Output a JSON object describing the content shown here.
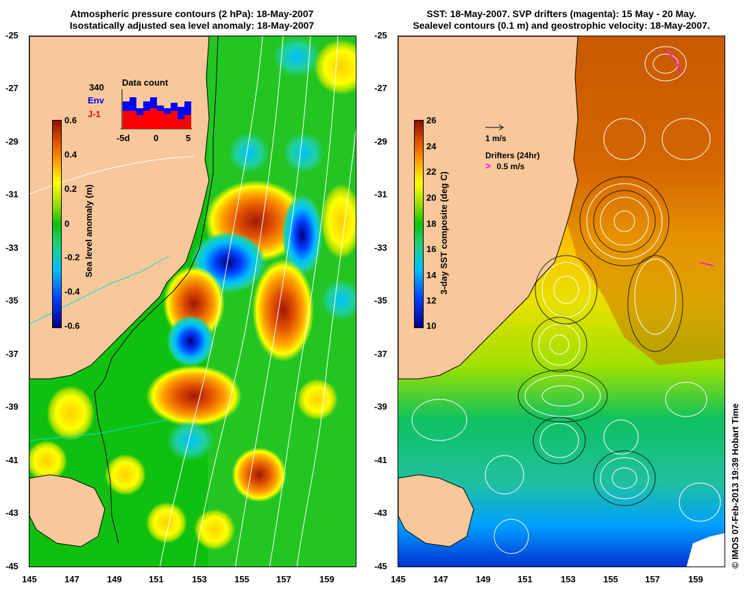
{
  "left_panel": {
    "title_line1": "Atmospheric pressure contours (2 hPa): 18-May-2007",
    "title_line2": "Isostatically adjusted sea level anomaly: 18-May-2007",
    "y_ticks": [
      "-25",
      "-27",
      "-29",
      "-31",
      "-33",
      "-35",
      "-37",
      "-39",
      "-41",
      "-43",
      "-45"
    ],
    "x_ticks": [
      "145",
      "147",
      "149",
      "151",
      "153",
      "155",
      "157",
      "159"
    ],
    "colorbar": {
      "label": "Sea level anomaly (m)",
      "ticks": [
        "0.6",
        "0.4",
        "0.2",
        "0",
        "-0.2",
        "-0.4",
        "-0.6"
      ],
      "range": [
        -0.6,
        0.6
      ]
    },
    "inset": {
      "title": "Data count",
      "count": "340",
      "legend_env": "Env",
      "legend_j1": "J-1",
      "x_ticks": [
        "-5d",
        "0",
        "5"
      ],
      "env_color": "#0000ff",
      "j1_color": "#ff0000"
    }
  },
  "right_panel": {
    "title_line1": "SST: 18-May-2007. SVP drifters (magenta): 15 May - 20 May.",
    "title_line2": "Sealevel contours (0.1 m) and geostrophic velocity: 18-May-2007.",
    "y_ticks": [
      "-25",
      "-27",
      "-29",
      "-31",
      "-33",
      "-35",
      "-37",
      "-39",
      "-41",
      "-43",
      "-45"
    ],
    "x_ticks": [
      "145",
      "147",
      "149",
      "151",
      "153",
      "155",
      "157",
      "159"
    ],
    "colorbar": {
      "label": "3-day SST composite (deg C)",
      "ticks": [
        "26",
        "24",
        "22",
        "20",
        "18",
        "16",
        "14",
        "12",
        "10"
      ],
      "range": [
        10,
        26
      ]
    },
    "velocity_legend": "1 m/s",
    "drifters_legend_title": "Drifters (24hr)",
    "drifters_legend_value": "0.5 m/s",
    "drifter_color": "#ff00ff"
  },
  "credit": "© IMOS 07-Feb-2013 19:39 Hobart Time",
  "colors": {
    "land": "#f8c89a",
    "sla_cmap": [
      "#00007f",
      "#0040ff",
      "#00c0ff",
      "#20d080",
      "#10c010",
      "#a0e000",
      "#ffff00",
      "#ffa000",
      "#e05000",
      "#8f1000"
    ],
    "sst_cmap": [
      "#00007f",
      "#0040ff",
      "#00c0ff",
      "#20d080",
      "#10c010",
      "#a0e000",
      "#ffff00",
      "#ffa000",
      "#e05000",
      "#8f1000"
    ]
  }
}
